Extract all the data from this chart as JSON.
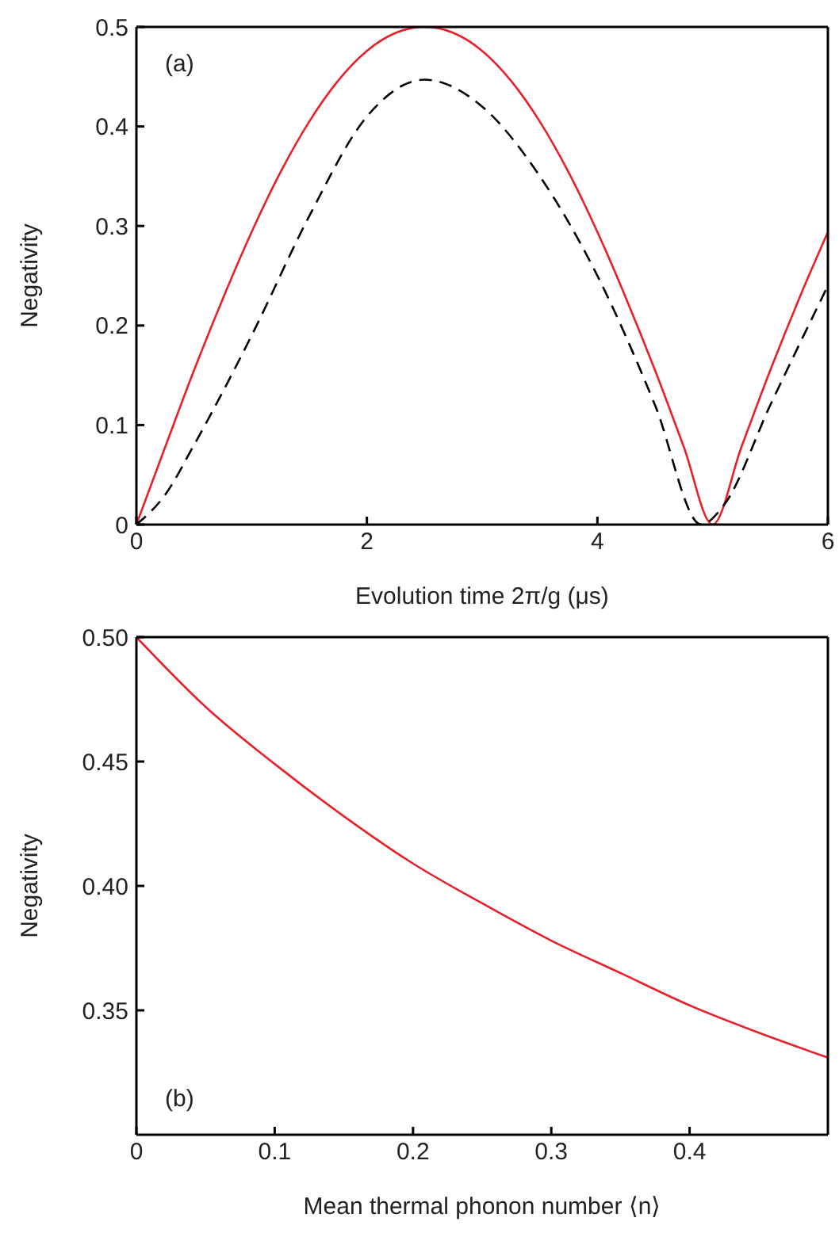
{
  "chart_data": [
    {
      "type": "line",
      "xlabel": "Evolution time 2π/g (μs)",
      "ylabel": "Negativity",
      "annotations": [
        "(a)"
      ],
      "xlim": [
        0,
        6
      ],
      "ylim": [
        0,
        0.5
      ],
      "xticks": [
        0,
        2,
        4,
        6
      ],
      "yticks": [
        0,
        0.1,
        0.2,
        0.3,
        0.4,
        0.5
      ],
      "legend": false,
      "marker": "none",
      "series": [
        {
          "color": "#e8202a",
          "line_style": "solid",
          "x": [
            0,
            0.25,
            0.5,
            0.75,
            1,
            1.25,
            1.5,
            1.75,
            2,
            2.25,
            2.5,
            2.75,
            3,
            3.25,
            3.5,
            3.75,
            4,
            4.25,
            4.5,
            4.75,
            5,
            5.25,
            5.5,
            5.75,
            6
          ],
          "values": [
            0,
            0.078,
            0.155,
            0.227,
            0.294,
            0.354,
            0.405,
            0.446,
            0.476,
            0.494,
            0.5,
            0.494,
            0.476,
            0.446,
            0.405,
            0.354,
            0.294,
            0.227,
            0.155,
            0.078,
            0,
            0.078,
            0.155,
            0.227,
            0.294
          ]
        },
        {
          "color": "#000000",
          "line_style": "dashed",
          "x": [
            0,
            0.25,
            0.5,
            1,
            1.5,
            2,
            2.5,
            3,
            3.5,
            4,
            4.5,
            4.9,
            5.1,
            5.5,
            6
          ],
          "values": [
            0,
            0.03,
            0.08,
            0.19,
            0.31,
            0.41,
            0.447,
            0.42,
            0.35,
            0.25,
            0.12,
            0,
            0.02,
            0.12,
            0.24
          ]
        }
      ]
    },
    {
      "type": "line",
      "xlabel": "Mean thermal phonon number ⟨n⟩",
      "ylabel": "Negativity",
      "annotations": [
        "(b)"
      ],
      "xlim": [
        0,
        0.5
      ],
      "ylim": [
        0.3,
        0.5
      ],
      "xticks": [
        0,
        0.1,
        0.2,
        0.3,
        0.4
      ],
      "yticks": [
        {
          "value": 0.35,
          "label": "0.35"
        },
        {
          "value": 0.4,
          "label": "0.40"
        },
        {
          "value": 0.45,
          "label": "0.45"
        },
        {
          "value": 0.5,
          "label": "0.50"
        }
      ],
      "legend": false,
      "marker": "none",
      "series": [
        {
          "color": "#e8202a",
          "line_style": "solid",
          "x": [
            0,
            0.05,
            0.1,
            0.15,
            0.2,
            0.25,
            0.3,
            0.35,
            0.4,
            0.45,
            0.5
          ],
          "values": [
            0.5,
            0.472,
            0.449,
            0.428,
            0.409,
            0.393,
            0.378,
            0.365,
            0.352,
            0.341,
            0.331
          ]
        }
      ]
    }
  ]
}
